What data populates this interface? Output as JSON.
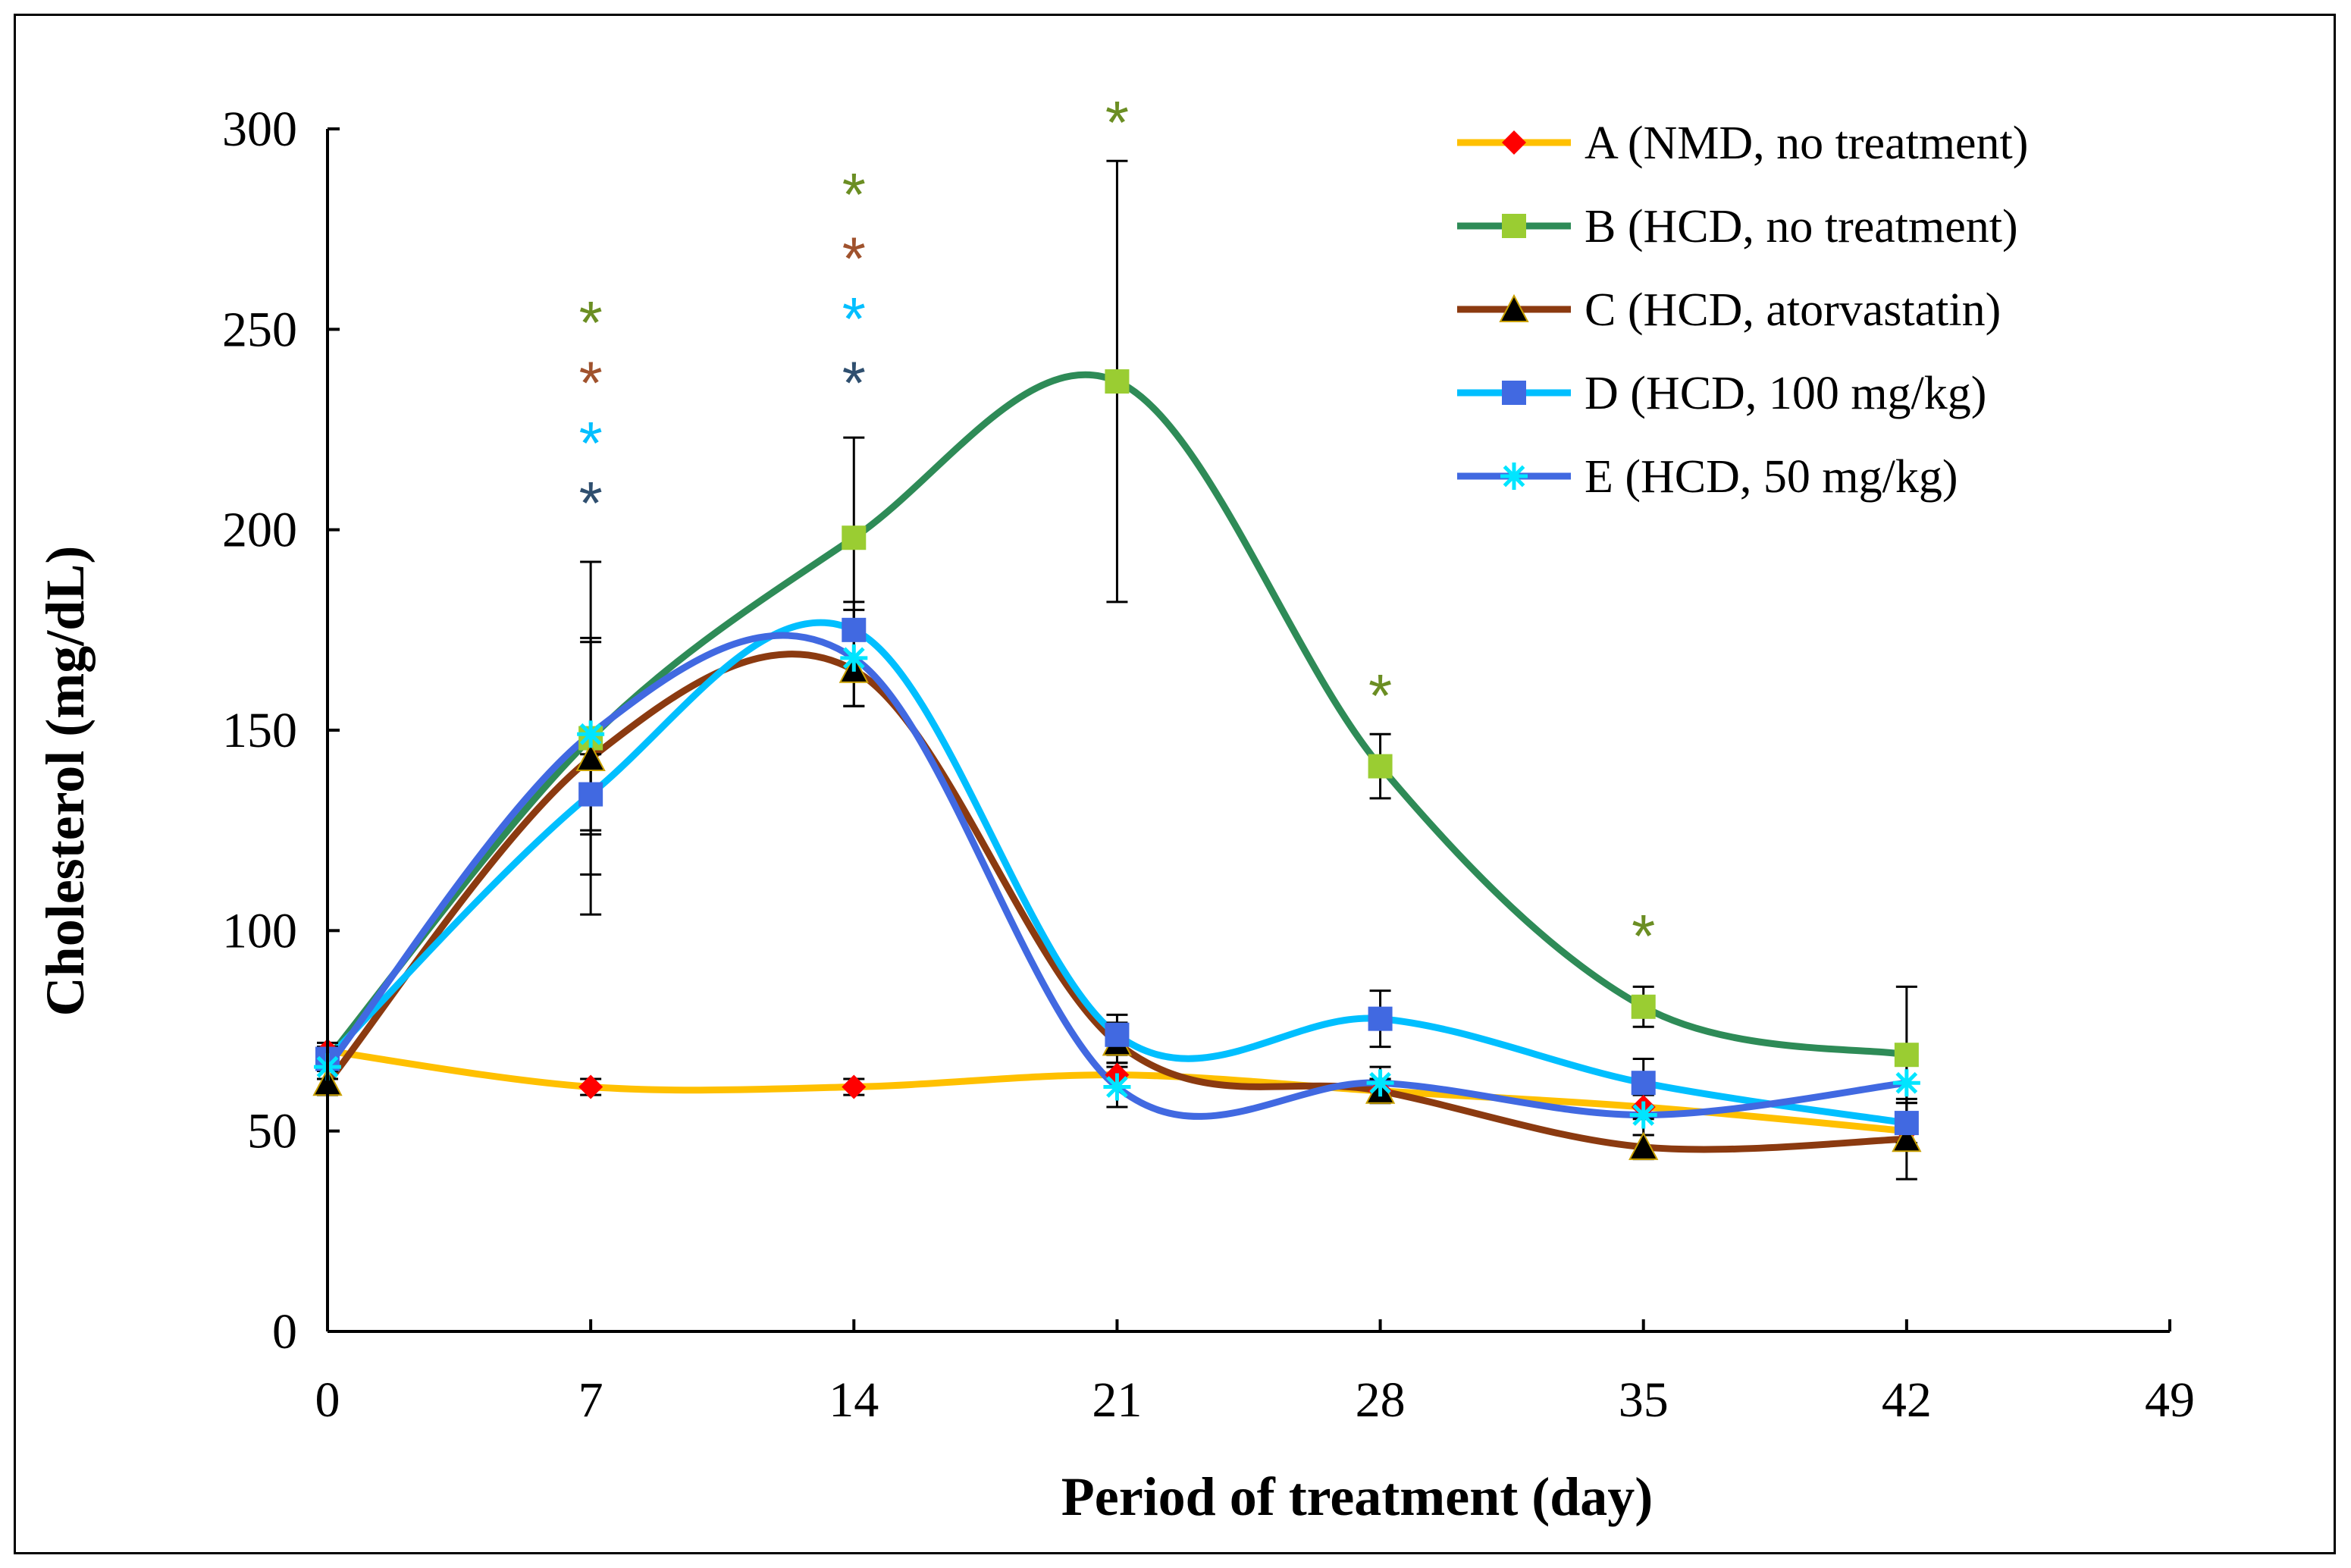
{
  "chart_data": {
    "type": "line",
    "title": "",
    "xlabel": "Period of treatment (day)",
    "ylabel": "Cholesterol (mg/dL)",
    "xlim": [
      0,
      49
    ],
    "ylim": [
      0,
      300
    ],
    "x_ticks": [
      0,
      7,
      14,
      21,
      28,
      35,
      42,
      49
    ],
    "y_ticks": [
      0,
      50,
      100,
      150,
      200,
      250,
      300
    ],
    "grid": false,
    "legend_position": "top-right",
    "x": [
      0,
      7,
      14,
      21,
      28,
      35,
      42
    ],
    "series": [
      {
        "name": "A (NMD, no treatment)",
        "color": "#ffc000",
        "marker": "diamond",
        "marker_color": "#ff0000",
        "values": [
          70,
          61,
          61,
          64,
          60,
          56,
          50
        ],
        "errors": [
          2,
          2,
          2,
          3,
          3,
          3,
          3
        ]
      },
      {
        "name": "B (HCD, no treatment)",
        "color": "#2e8b57",
        "marker": "square",
        "marker_color": "#9acd32",
        "values": [
          68,
          148,
          198,
          237,
          141,
          81,
          69
        ],
        "errors": [
          3,
          44,
          25,
          55,
          8,
          5,
          17
        ]
      },
      {
        "name": "C (HCD, atorvastatin)",
        "color": "#8b3a10",
        "marker": "triangle",
        "marker_color": "#000000",
        "values": [
          62,
          143,
          165,
          72,
          60,
          46,
          48
        ],
        "errors": [
          3,
          29,
          9,
          5,
          3,
          3,
          10
        ]
      },
      {
        "name": "D (HCD, 100 mg/kg)",
        "color": "#00bfff",
        "marker": "square",
        "marker_color": "#4169e1",
        "values": [
          68,
          134,
          175,
          74,
          78,
          62,
          52
        ],
        "errors": [
          3,
          10,
          7,
          5,
          7,
          6,
          5
        ]
      },
      {
        "name": "E (HCD, 50 mg/kg)",
        "color": "#4169e1",
        "marker": "star",
        "marker_color": "#00e5ff",
        "values": [
          66,
          149,
          168,
          61,
          62,
          54,
          62
        ],
        "errors": [
          3,
          24,
          12,
          5,
          4,
          5,
          5
        ]
      }
    ],
    "annotations": [
      {
        "text": "*",
        "x": 7,
        "y": 254,
        "color": "#6b8e23"
      },
      {
        "text": "*",
        "x": 7,
        "y": 239,
        "color": "#a0522d"
      },
      {
        "text": "*",
        "x": 7,
        "y": 224,
        "color": "#00bfff"
      },
      {
        "text": "*",
        "x": 7,
        "y": 209,
        "color": "#2f4f6f"
      },
      {
        "text": "*",
        "x": 14,
        "y": 286,
        "color": "#6b8e23"
      },
      {
        "text": "*",
        "x": 14,
        "y": 270,
        "color": "#a0522d"
      },
      {
        "text": "*",
        "x": 14,
        "y": 255,
        "color": "#00bfff"
      },
      {
        "text": "*",
        "x": 14,
        "y": 239,
        "color": "#2f4f6f"
      },
      {
        "text": "*",
        "x": 21,
        "y": 304,
        "color": "#6b8e23"
      },
      {
        "text": "*",
        "x": 28,
        "y": 161,
        "color": "#6b8e23"
      },
      {
        "text": "*",
        "x": 35,
        "y": 101,
        "color": "#6b8e23"
      }
    ]
  }
}
